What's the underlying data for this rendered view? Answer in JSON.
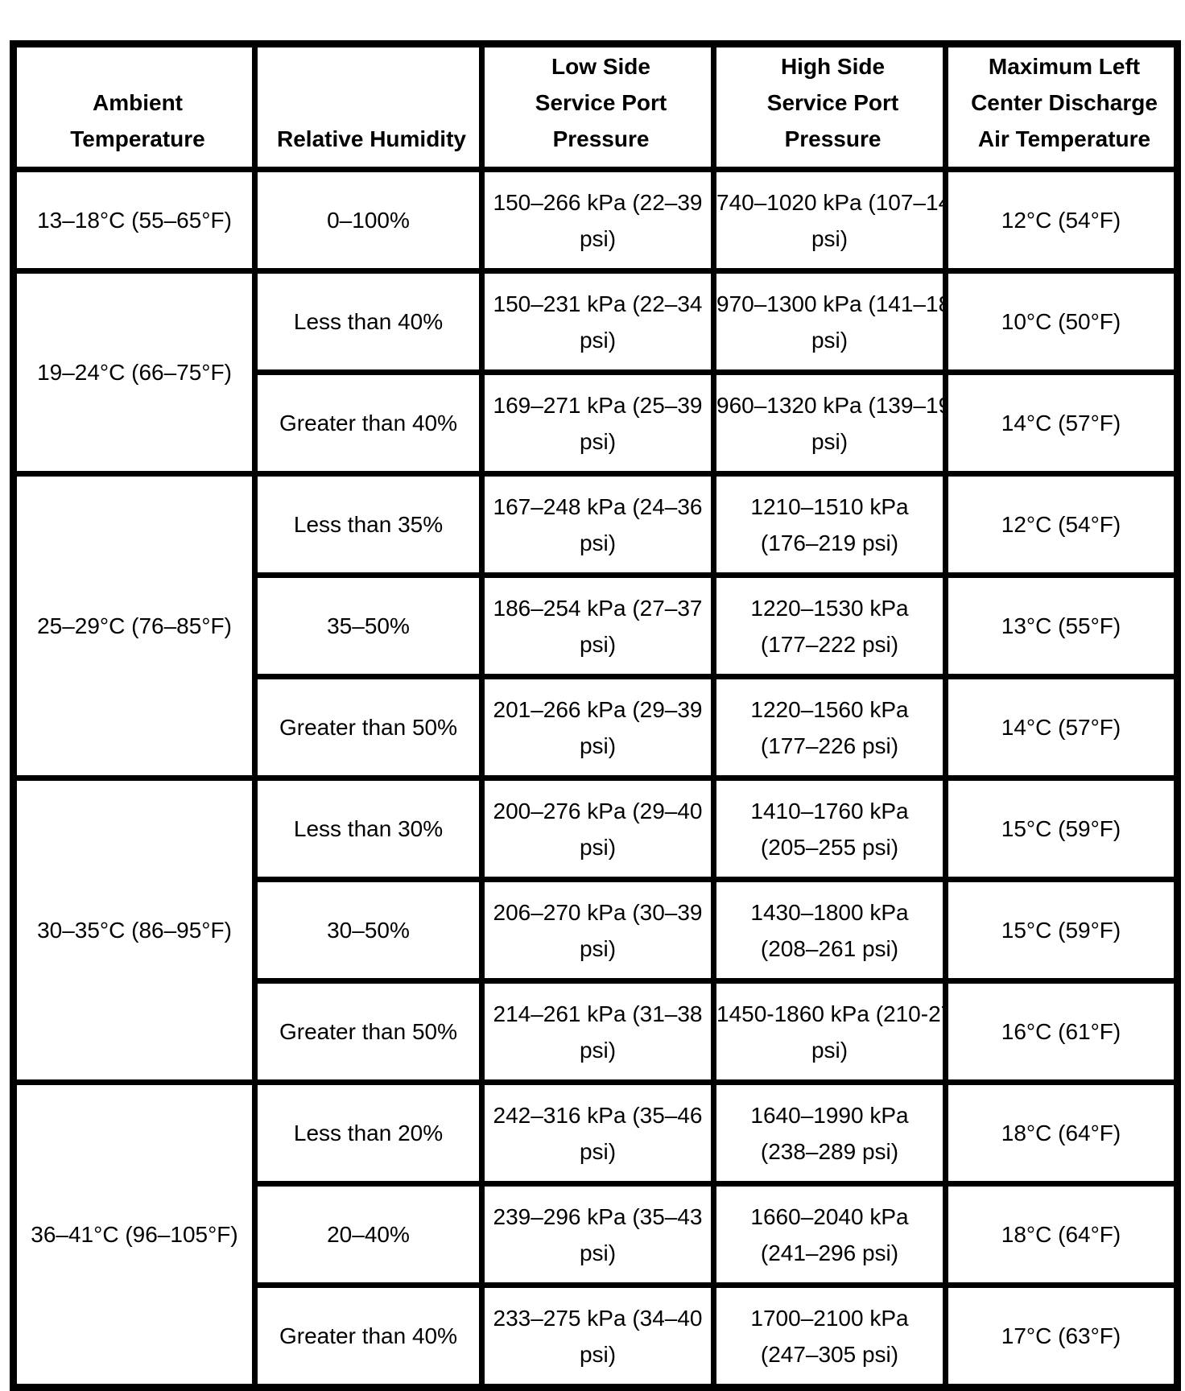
{
  "table": {
    "header": {
      "cells": [
        {
          "key": "ambient",
          "lines": [
            "Ambient",
            "Temperature"
          ]
        },
        {
          "key": "humidity",
          "lines": [
            "Relative Humidity"
          ]
        },
        {
          "key": "low",
          "lines": [
            "Low Side",
            "Service Port",
            "Pressure"
          ]
        },
        {
          "key": "high",
          "lines": [
            "High Side",
            "Service Port",
            "Pressure"
          ]
        },
        {
          "key": "max",
          "lines": [
            "Maximum Left",
            "Center Discharge",
            "Air Temperature"
          ]
        }
      ]
    },
    "groups": [
      {
        "ambient": "13–18°C (55–65°F)",
        "rows": [
          {
            "humidity": "0–100%",
            "low": [
              "150–266 kPa (22–39",
              "psi)"
            ],
            "high": [
              "740–1020 kPa (107–14",
              "psi)"
            ],
            "max": "12°C (54°F)"
          }
        ]
      },
      {
        "ambient": "19–24°C (66–75°F)",
        "rows": [
          {
            "humidity": "Less than 40%",
            "low": [
              "150–231 kPa (22–34",
              "psi)"
            ],
            "high": [
              "970–1300 kPa (141–18",
              "psi)"
            ],
            "max": "10°C (50°F)"
          },
          {
            "humidity": "Greater than 40%",
            "low": [
              "169–271 kPa (25–39",
              "psi)"
            ],
            "high": [
              "960–1320 kPa (139–19",
              "psi)"
            ],
            "max": "14°C (57°F)"
          }
        ]
      },
      {
        "ambient": "25–29°C (76–85°F)",
        "rows": [
          {
            "humidity": "Less than 35%",
            "low": [
              "167–248 kPa (24–36",
              "psi)"
            ],
            "high": [
              "1210–1510 kPa",
              "(176–219 psi)"
            ],
            "max": "12°C (54°F)"
          },
          {
            "humidity": "35–50%",
            "low": [
              "186–254 kPa (27–37",
              "psi)"
            ],
            "high": [
              "1220–1530 kPa",
              "(177–222 psi)"
            ],
            "max": "13°C (55°F)"
          },
          {
            "humidity": "Greater than 50%",
            "low": [
              "201–266 kPa (29–39",
              "psi)"
            ],
            "high": [
              "1220–1560 kPa",
              "(177–226 psi)"
            ],
            "max": "14°C (57°F)"
          }
        ]
      },
      {
        "ambient": "30–35°C (86–95°F)",
        "rows": [
          {
            "humidity": "Less than 30%",
            "low": [
              "200–276 kPa (29–40",
              "psi)"
            ],
            "high": [
              "1410–1760 kPa",
              "(205–255 psi)"
            ],
            "max": "15°C (59°F)"
          },
          {
            "humidity": "30–50%",
            "low": [
              "206–270 kPa (30–39",
              "psi)"
            ],
            "high": [
              "1430–1800 kPa",
              "(208–261 psi)"
            ],
            "max": "15°C (59°F)"
          },
          {
            "humidity": "Greater than 50%",
            "low": [
              "214–261 kPa (31–38",
              "psi)"
            ],
            "high": [
              "1450-1860 kPa (210-27",
              "psi)"
            ],
            "max": "16°C (61°F)"
          }
        ]
      },
      {
        "ambient": "36–41°C (96–105°F)",
        "rows": [
          {
            "humidity": "Less than 20%",
            "low": [
              "242–316 kPa (35–46",
              "psi)"
            ],
            "high": [
              "1640–1990 kPa",
              "(238–289 psi)"
            ],
            "max": "18°C (64°F)"
          },
          {
            "humidity": "20–40%",
            "low": [
              "239–296 kPa (35–43",
              "psi)"
            ],
            "high": [
              "1660–2040 kPa",
              "(241–296 psi)"
            ],
            "max": "18°C (64°F)"
          },
          {
            "humidity": "Greater than 40%",
            "low": [
              "233–275 kPa (34–40",
              "psi)"
            ],
            "high": [
              "1700–2100 kPa",
              "(247–305 psi)"
            ],
            "max": "17°C (63°F)"
          }
        ]
      }
    ]
  }
}
